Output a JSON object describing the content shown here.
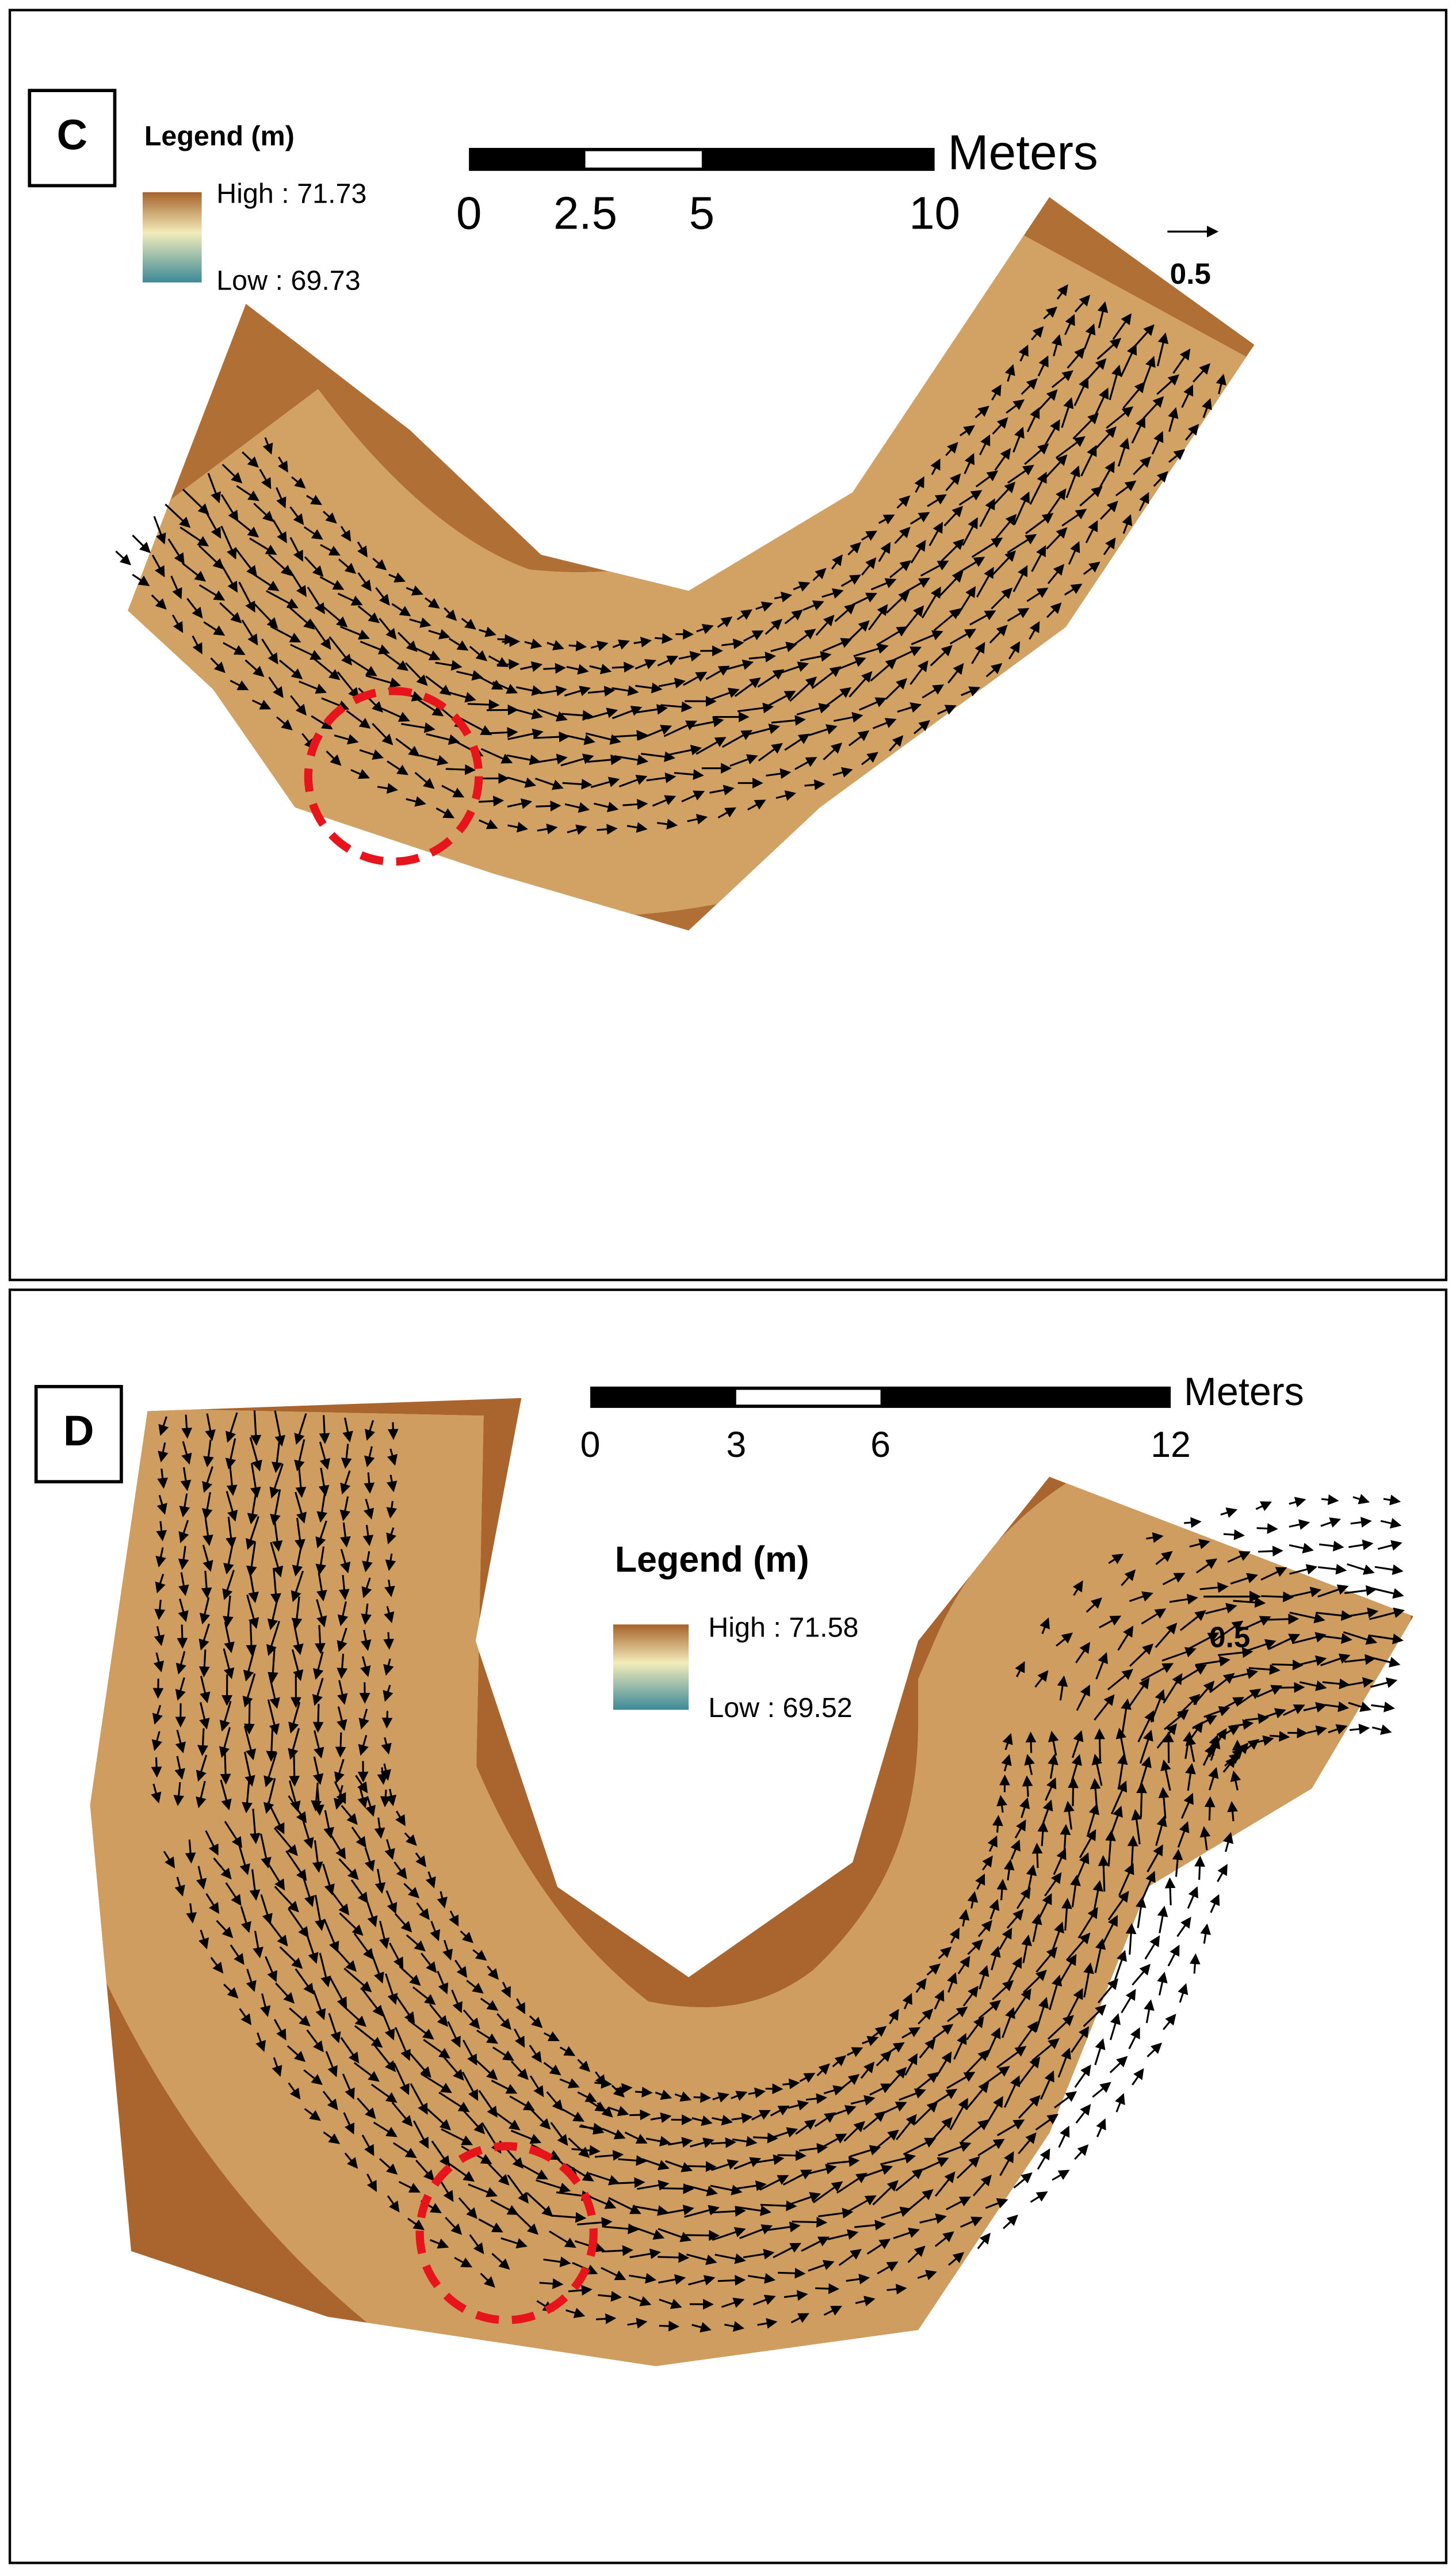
{
  "panels": [
    {
      "label": "C",
      "legend": {
        "title": "Legend (m)",
        "high": "High : 71.73",
        "low": "Low : 69.73"
      },
      "scale_bar": {
        "ticks": [
          "0",
          "2.5",
          "5",
          "10"
        ],
        "unit": "Meters"
      },
      "vector_scale": "0.5"
    },
    {
      "label": "D",
      "legend": {
        "title": "Legend (m)",
        "high": "High : 71.58",
        "low": "Low : 69.52"
      },
      "scale_bar": {
        "ticks": [
          "0",
          "3",
          "6",
          "12"
        ],
        "unit": "Meters"
      },
      "vector_scale": "0.5"
    }
  ]
}
